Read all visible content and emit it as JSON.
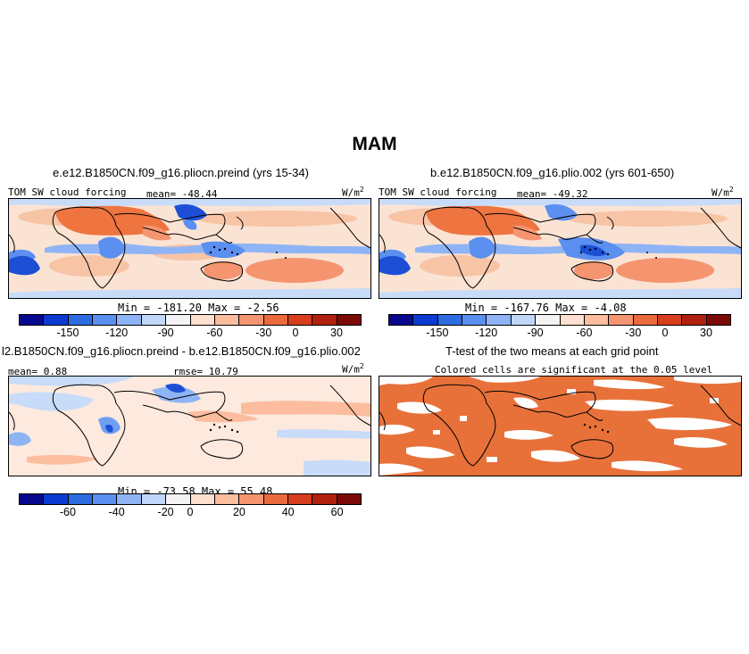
{
  "season": "MAM",
  "colors": {
    "palette": [
      "#08088f",
      "#0b3ad1",
      "#2d6be0",
      "#5b8ff0",
      "#8fb4f5",
      "#c2d6fa",
      "#f3f3f6",
      "#fde0cf",
      "#fbbd9e",
      "#f59570",
      "#ea6a3e",
      "#d63e1e",
      "#b1200f",
      "#7c0a07"
    ],
    "ocean_light": "#fbe3d4",
    "ocean_warm": "#f8c4a6",
    "orange_strong": "#ee7440",
    "blue_light": "#c8dbf8",
    "blue_mid": "#6f9ff0",
    "blue_dark": "#1d4fd6",
    "sig_orange": "#e8713a"
  },
  "panels": {
    "p1": {
      "title": "e.e12.B1850CN.f09_g16.pliocn.preind (yrs 15-34)",
      "variable": "TOM SW cloud forcing",
      "mean_text": "mean= -48.44",
      "units": "W/m",
      "units_exp": "2",
      "minmax": "Min = -181.20 Max =  -2.56",
      "ticks": [
        "-150",
        "-120",
        "-90",
        "-60",
        "-30",
        "0",
        "30"
      ]
    },
    "p2": {
      "title": "b.e12.B1850CN.f09_g16.plio.002 (yrs 601-650)",
      "variable": "TOM SW cloud forcing",
      "mean_text": "mean= -49.32",
      "units": "W/m",
      "units_exp": "2",
      "minmax": "Min = -167.76 Max =  -4.08",
      "ticks": [
        "-150",
        "-120",
        "-90",
        "-60",
        "-30",
        "0",
        "30"
      ]
    },
    "p3": {
      "title": "l2.B1850CN.f09_g16.pliocn.preind - b.e12.B1850CN.f09_g16.plio.002",
      "mean_text": "mean=  0.88",
      "rmse_text": "rmse=  10.79",
      "units": "W/m",
      "units_exp": "2",
      "minmax": "Min = -73.58 Max =  55.48",
      "ticks": [
        "-60",
        "-40",
        "-20",
        "0",
        "20",
        "40",
        "60"
      ]
    },
    "p4": {
      "title": "T-test of the two means at each grid point",
      "subtitle": "Colored cells are significant at the 0.05 level"
    }
  }
}
